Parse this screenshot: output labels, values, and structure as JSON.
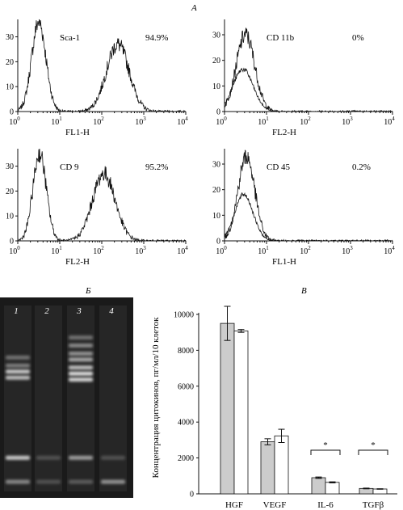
{
  "panel_labels": {
    "a": "А",
    "b": "Б",
    "c": "В"
  },
  "chart_data": [
    {
      "type": "histogram",
      "marker": "Sca-1",
      "percent": "94.9%",
      "xlabel": "FL1-H",
      "xscale": "log",
      "xlim": [
        1,
        10000
      ],
      "ylim": [
        0,
        37
      ],
      "yticks": [
        0,
        10,
        20,
        30
      ],
      "xticks": [
        "10",
        "10",
        "10",
        "10",
        "10"
      ],
      "xtick_exponents": [
        "0",
        "1",
        "2",
        "3",
        "4"
      ],
      "peaks": [
        {
          "center_log": 0.5,
          "width_log": 0.17,
          "height": 36
        },
        {
          "center_log": 2.38,
          "width_log": 0.27,
          "height": 27
        }
      ],
      "secondary_curve": false
    },
    {
      "type": "histogram",
      "marker": "CD 11b",
      "percent": "0%",
      "xlabel": "FL2-H",
      "xscale": "log",
      "xlim": [
        1,
        10000
      ],
      "ylim": [
        0,
        36
      ],
      "yticks": [
        0,
        10,
        20,
        30
      ],
      "xticks": [
        "10",
        "10",
        "10",
        "10",
        "10"
      ],
      "xtick_exponents": [
        "0",
        "1",
        "2",
        "3",
        "4"
      ],
      "peaks": [
        {
          "center_log": 0.5,
          "width_log": 0.22,
          "height": 30
        }
      ],
      "secondary_curve": true
    },
    {
      "type": "histogram",
      "marker": "CD 9",
      "percent": "95.2%",
      "xlabel": "FL2-H",
      "xscale": "log",
      "xlim": [
        1,
        10000
      ],
      "ylim": [
        0,
        37
      ],
      "yticks": [
        0,
        10,
        20,
        30
      ],
      "xticks": [
        "10",
        "10",
        "10",
        "10",
        "10"
      ],
      "xtick_exponents": [
        "0",
        "1",
        "2",
        "3",
        "4"
      ],
      "peaks": [
        {
          "center_log": 0.52,
          "width_log": 0.16,
          "height": 35
        },
        {
          "center_log": 2.05,
          "width_log": 0.27,
          "height": 27
        }
      ],
      "secondary_curve": false
    },
    {
      "type": "histogram",
      "marker": "CD 45",
      "percent": "0.2%",
      "xlabel": "FL1-H",
      "xscale": "log",
      "xlim": [
        1,
        10000
      ],
      "ylim": [
        0,
        36
      ],
      "yticks": [
        0,
        10,
        20,
        30
      ],
      "xticks": [
        "10",
        "10",
        "10",
        "10",
        "10"
      ],
      "xtick_exponents": [
        "0",
        "1",
        "2",
        "3",
        "4"
      ],
      "peaks": [
        {
          "center_log": 0.52,
          "width_log": 0.2,
          "height": 33
        }
      ],
      "secondary_curve": true
    },
    {
      "type": "gel",
      "lane_labels": [
        "1",
        "2",
        "3",
        "4"
      ],
      "lanes": [
        {
          "bands": [
            0.3,
            0.34,
            0.37,
            0.4,
            0.8,
            0.92
          ],
          "intensity": [
            0.35,
            0.4,
            0.75,
            0.7,
            0.75,
            0.45
          ]
        },
        {
          "bands": [
            0.8,
            0.92
          ],
          "intensity": [
            0.2,
            0.2
          ]
        },
        {
          "bands": [
            0.2,
            0.24,
            0.28,
            0.31,
            0.35,
            0.38,
            0.41,
            0.8,
            0.92
          ],
          "intensity": [
            0.35,
            0.45,
            0.5,
            0.6,
            0.7,
            0.85,
            0.8,
            0.55,
            0.25
          ]
        },
        {
          "bands": [
            0.8,
            0.92
          ],
          "intensity": [
            0.2,
            0.5
          ]
        }
      ]
    },
    {
      "type": "bar",
      "ylabel": "Концентрация цитокинов, пг/мл/10 клеток",
      "ylim": [
        0,
        10000
      ],
      "yticks": [
        0,
        2000,
        4000,
        6000,
        8000,
        10000
      ],
      "categories": [
        "HGF",
        "VEGF",
        "IL-6",
        "TGFβ"
      ],
      "series": [
        {
          "fill": "#cccccc",
          "values": [
            9500,
            2900,
            900,
            300
          ],
          "errors": [
            950,
            170,
            40,
            20
          ]
        },
        {
          "fill": "#ffffff",
          "values": [
            9080,
            3230,
            640,
            270
          ],
          "errors": [
            80,
            370,
            30,
            15
          ]
        }
      ],
      "significance": [
        {
          "category": "IL-6",
          "label": "*"
        },
        {
          "category": "TGFβ",
          "label": "*"
        }
      ]
    }
  ]
}
